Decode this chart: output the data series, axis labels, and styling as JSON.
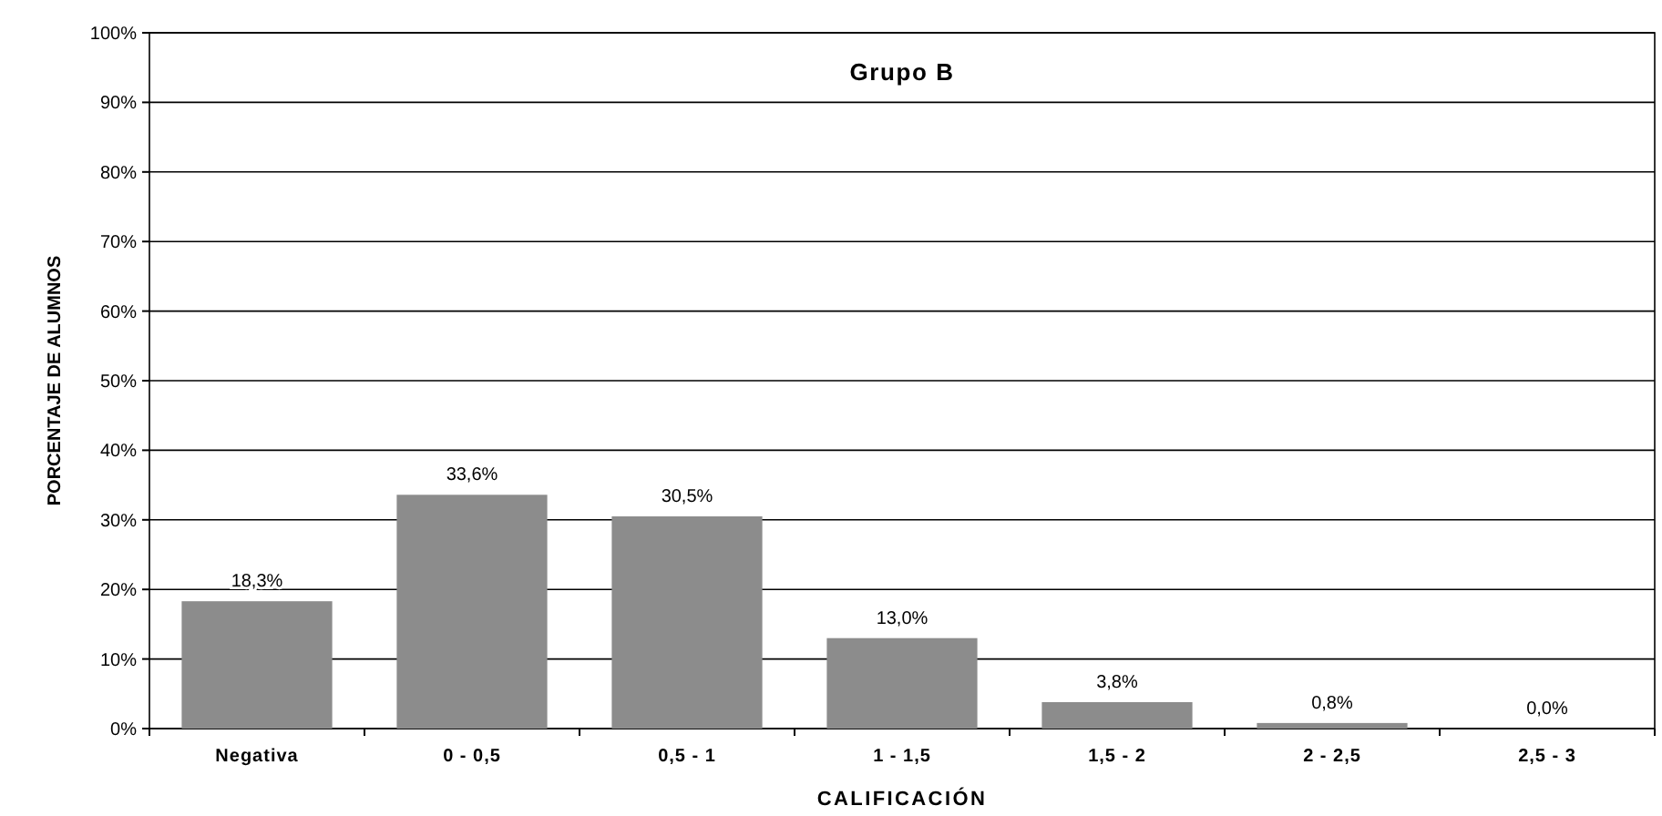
{
  "chart_data": {
    "type": "bar",
    "title": "Grupo B",
    "xlabel": "CALIFICACIÓN",
    "ylabel": "PORCENTAJE DE ALUMNOS",
    "categories": [
      "Negativa",
      "0 - 0,5",
      "0,5 - 1",
      "1 - 1,5",
      "1,5 - 2",
      "2 - 2,5",
      "2,5 - 3"
    ],
    "values": [
      18.3,
      33.6,
      30.5,
      13.0,
      3.8,
      0.8,
      0.0
    ],
    "value_labels": [
      "18,3%",
      "33,6%",
      "30,5%",
      "13,0%",
      "3,8%",
      "0,8%",
      "0,0%"
    ],
    "color": "#8c8c8c",
    "ylim": [
      0,
      100
    ],
    "yticks": [
      {
        "value": 0,
        "label": "0%"
      },
      {
        "value": 10,
        "label": "10%"
      },
      {
        "value": 20,
        "label": "20%"
      },
      {
        "value": 30,
        "label": "30%"
      },
      {
        "value": 40,
        "label": "40%"
      },
      {
        "value": 50,
        "label": "50%"
      },
      {
        "value": 60,
        "label": "60%"
      },
      {
        "value": 70,
        "label": "70%"
      },
      {
        "value": 80,
        "label": "80%"
      },
      {
        "value": 90,
        "label": "90%"
      },
      {
        "value": 100,
        "label": "100%"
      }
    ],
    "grid": "y"
  }
}
